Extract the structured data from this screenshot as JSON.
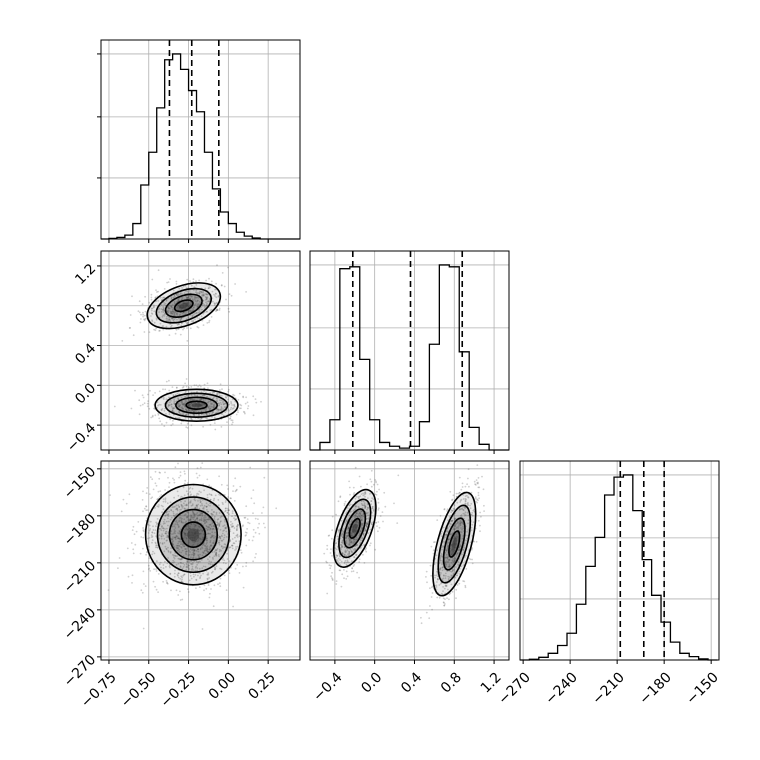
{
  "chart_data": {
    "type": "corner",
    "grid": true,
    "n_params": 3,
    "params": [
      {
        "id": "p1",
        "range": [
          -0.8,
          0.45
        ],
        "ticks": [
          -0.75,
          -0.5,
          -0.25,
          0.0,
          0.25
        ],
        "tick_labels": [
          "−0.75",
          "−0.50",
          "−0.25",
          "0.00",
          "0.25"
        ]
      },
      {
        "id": "p2",
        "range": [
          -0.65,
          1.35
        ],
        "ticks": [
          -0.4,
          0.0,
          0.4,
          0.8,
          1.2
        ],
        "tick_labels": [
          "−0.4",
          "0.0",
          "0.4",
          "0.8",
          "1.2"
        ]
      },
      {
        "id": "p3",
        "range": [
          -272,
          -145
        ],
        "ticks": [
          -270,
          -240,
          -210,
          -180,
          -150
        ],
        "tick_labels": [
          "−270",
          "−240",
          "−210",
          "−180",
          "−150"
        ]
      }
    ],
    "histograms": [
      {
        "param": "p1",
        "bin_edges": [
          -0.8,
          -0.75,
          -0.7,
          -0.65,
          -0.6,
          -0.55,
          -0.5,
          -0.45,
          -0.4,
          -0.35,
          -0.3,
          -0.25,
          -0.2,
          -0.15,
          -0.1,
          -0.05,
          0.0,
          0.05,
          0.1,
          0.15,
          0.2,
          0.25,
          0.3,
          0.35,
          0.4,
          0.45
        ],
        "counts": [
          0,
          0.003,
          0.008,
          0.02,
          0.08,
          0.28,
          0.45,
          0.68,
          0.93,
          0.96,
          0.88,
          0.77,
          0.66,
          0.45,
          0.26,
          0.14,
          0.08,
          0.035,
          0.015,
          0.005,
          0,
          0,
          0,
          0,
          0
        ],
        "quantiles": [
          -0.37,
          -0.23,
          -0.06
        ]
      },
      {
        "param": "p2",
        "bin_edges": [
          -0.65,
          -0.55,
          -0.45,
          -0.35,
          -0.25,
          -0.15,
          -0.05,
          0.05,
          0.15,
          0.25,
          0.35,
          0.45,
          0.55,
          0.65,
          0.75,
          0.85,
          0.95,
          1.05,
          1.15,
          1.25,
          1.35
        ],
        "counts": [
          0,
          0.04,
          0.16,
          0.96,
          0.97,
          0.48,
          0.16,
          0.04,
          0.02,
          0.01,
          0.02,
          0.15,
          0.56,
          0.98,
          0.97,
          0.52,
          0.12,
          0.03,
          0,
          0
        ],
        "quantiles": [
          -0.22,
          0.36,
          0.88
        ]
      },
      {
        "param": "p3",
        "bin_edges": [
          -272,
          -266,
          -260,
          -254,
          -248,
          -242,
          -236,
          -230,
          -224,
          -218,
          -212,
          -206,
          -200,
          -194,
          -188,
          -182,
          -176,
          -170,
          -164,
          -158,
          -152,
          -146
        ],
        "counts": [
          0,
          0.003,
          0.012,
          0.03,
          0.065,
          0.12,
          0.25,
          0.42,
          0.55,
          0.74,
          0.82,
          0.83,
          0.67,
          0.45,
          0.29,
          0.17,
          0.08,
          0.03,
          0.015,
          0.005,
          0
        ],
        "quantiles": [
          -208,
          -193,
          -180
        ]
      }
    ],
    "density_panels": [
      {
        "x": "p1",
        "y": "p2",
        "modes": [
          {
            "center": [
              -0.28,
              0.8
            ],
            "sigma": [
              0.12,
              0.1
            ],
            "rotation": -20
          },
          {
            "center": [
              -0.2,
              -0.2
            ],
            "sigma": [
              0.13,
              0.08
            ],
            "rotation": 0
          }
        ]
      },
      {
        "x": "p1",
        "y": "p3",
        "modes": [
          {
            "center": [
              -0.22,
              -192
            ],
            "sigma": [
              0.15,
              16
            ],
            "rotation": 0
          }
        ]
      },
      {
        "x": "p2",
        "y": "p3",
        "modes": [
          {
            "center": [
              -0.2,
              -188
            ],
            "sigma": [
              0.085,
              13
            ],
            "rotation": 20
          },
          {
            "center": [
              0.8,
              -198
            ],
            "sigma": [
              0.085,
              17
            ],
            "rotation": 15
          }
        ]
      }
    ]
  }
}
